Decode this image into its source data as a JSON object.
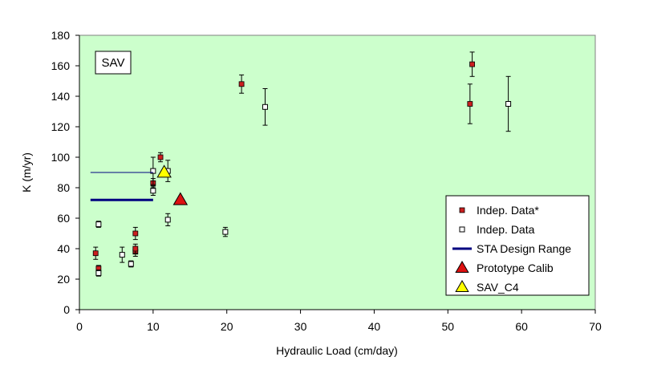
{
  "chart_data": {
    "type": "scatter",
    "title": "",
    "xlabel": "Hydraulic Load (cm/day)",
    "ylabel": "K (m/yr)",
    "xlim": [
      0,
      70
    ],
    "ylim": [
      0,
      180
    ],
    "xticks": [
      0,
      10,
      20,
      30,
      40,
      50,
      60,
      70
    ],
    "yticks": [
      0,
      20,
      40,
      60,
      80,
      100,
      120,
      140,
      160,
      180
    ],
    "grid": false,
    "legend_position": "bottom-right",
    "inset_label": "SAV",
    "colors": {
      "plot_background": "#ccffcc",
      "filled_marker": "#cc1f1f",
      "open_marker_fill": "#ffffff",
      "sta_line": "#000080",
      "prototype_marker": "#dd1111",
      "sav_c4_marker": "#ffff00"
    },
    "series": [
      {
        "name": "Indep. Data*",
        "marker": "filled-square",
        "points": [
          {
            "x": 2.2,
            "y": 37,
            "err": 4
          },
          {
            "x": 2.6,
            "y": 27,
            "err": 2
          },
          {
            "x": 7.6,
            "y": 38,
            "err": 3
          },
          {
            "x": 7.6,
            "y": 40,
            "err": 3
          },
          {
            "x": 7.6,
            "y": 50,
            "err": 4
          },
          {
            "x": 10.0,
            "y": 83,
            "err": 3
          },
          {
            "x": 11.0,
            "y": 100,
            "err": 3
          },
          {
            "x": 22.0,
            "y": 148,
            "err": 6
          },
          {
            "x": 53.0,
            "y": 135,
            "err": 13
          },
          {
            "x": 53.3,
            "y": 161,
            "err": 8
          }
        ]
      },
      {
        "name": "Indep. Data",
        "marker": "open-square",
        "points": [
          {
            "x": 2.6,
            "y": 24,
            "err": 2
          },
          {
            "x": 2.6,
            "y": 56,
            "err": 2
          },
          {
            "x": 5.8,
            "y": 36,
            "err": 5
          },
          {
            "x": 7.0,
            "y": 30,
            "err": 2
          },
          {
            "x": 10.0,
            "y": 91,
            "err": 9
          },
          {
            "x": 10.0,
            "y": 78,
            "err": 3
          },
          {
            "x": 12.0,
            "y": 59,
            "err": 4
          },
          {
            "x": 12.0,
            "y": 91,
            "err": 7
          },
          {
            "x": 19.8,
            "y": 51,
            "err": 3
          },
          {
            "x": 25.2,
            "y": 133,
            "err": 12
          },
          {
            "x": 58.2,
            "y": 135,
            "err": 18
          }
        ]
      },
      {
        "name": "STA Design Range",
        "marker": "line",
        "lines": [
          {
            "x": [
              1.5,
              10.0
            ],
            "y": [
              72,
              72
            ],
            "thick": true
          },
          {
            "x": [
              1.5,
              10.0
            ],
            "y": [
              90,
              90
            ],
            "thick": false
          }
        ]
      },
      {
        "name": "Prototype Calib",
        "marker": "triangle",
        "points": [
          {
            "x": 13.7,
            "y": 72
          }
        ]
      },
      {
        "name": "SAV_C4",
        "marker": "triangle",
        "points": [
          {
            "x": 11.5,
            "y": 90
          }
        ]
      }
    ]
  }
}
